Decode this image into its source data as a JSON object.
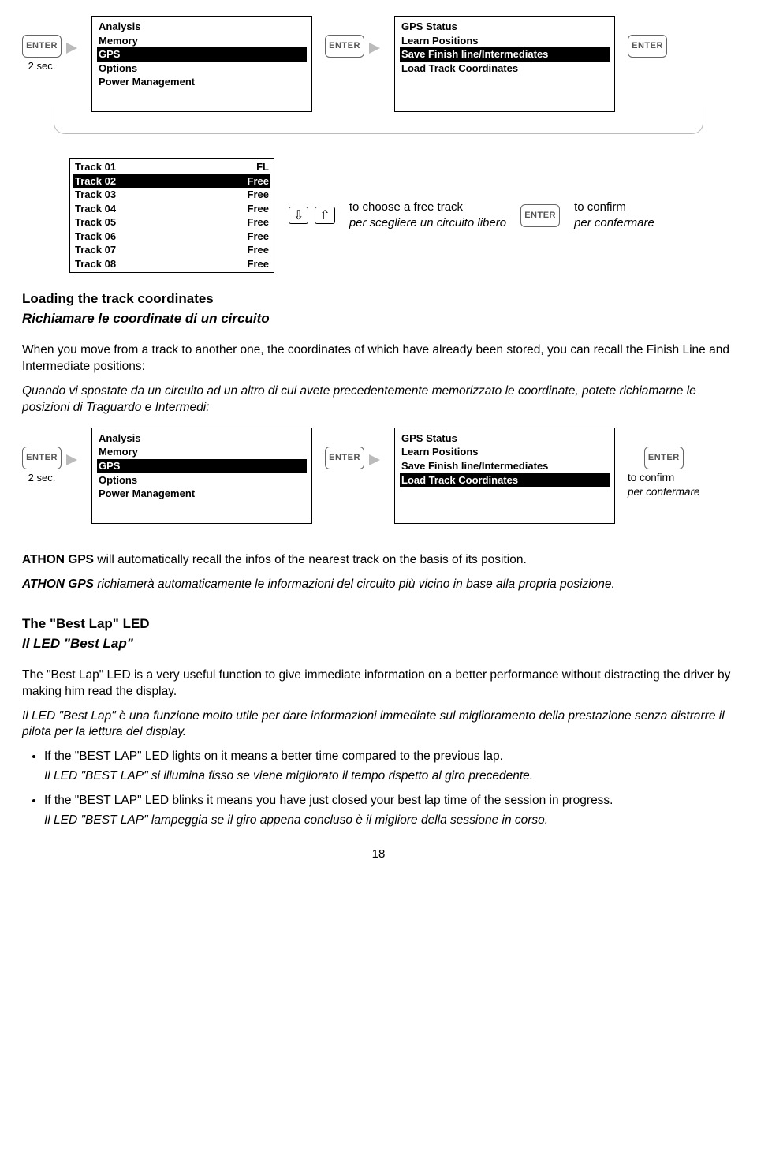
{
  "enter_label": "ENTER",
  "two_sec": "2 sec.",
  "menu1": {
    "items": [
      {
        "label": "Analysis",
        "sel": false
      },
      {
        "label": "Memory",
        "sel": false
      },
      {
        "label": "GPS",
        "sel": true
      },
      {
        "label": "Options",
        "sel": false
      },
      {
        "label": "Power Management",
        "sel": false
      }
    ]
  },
  "menu2": {
    "items": [
      {
        "label": "GPS Status",
        "sel": false
      },
      {
        "label": "Learn Positions",
        "sel": false
      },
      {
        "label": "Save Finish line/Intermediates",
        "sel": true
      },
      {
        "label": "Load Track Coordinates",
        "sel": false
      }
    ]
  },
  "tracks": {
    "rows": [
      {
        "name": "Track 01",
        "status": "FL",
        "sel": false
      },
      {
        "name": "Track 02",
        "status": "Free",
        "sel": true
      },
      {
        "name": "Track 03",
        "status": "Free",
        "sel": false
      },
      {
        "name": "Track 04",
        "status": "Free",
        "sel": false
      },
      {
        "name": "Track 05",
        "status": "Free",
        "sel": false
      },
      {
        "name": "Track 06",
        "status": "Free",
        "sel": false
      },
      {
        "name": "Track 07",
        "status": "Free",
        "sel": false
      },
      {
        "name": "Track 08",
        "status": "Free",
        "sel": false
      }
    ],
    "arrow_down": "⇩",
    "arrow_up": "⇧",
    "note_en": "to choose a free track",
    "note_it": "per scegliere un circuito libero",
    "confirm_en": "to confirm",
    "confirm_it": "per confermare"
  },
  "heading1_en": "Loading the track coordinates",
  "heading1_it": "Richiamare le coordinate di un circuito",
  "para1_en": "When you move from a track to another one, the coordinates of which have already been stored, you can recall the Finish Line and Intermediate positions:",
  "para1_it": "Quando vi spostate da un circuito ad un altro di cui avete precedentemente memorizzato le coordinate, potete richiamarne le posizioni di Traguardo e Intermedi:",
  "menu3": {
    "items": [
      {
        "label": "GPS Status",
        "sel": false
      },
      {
        "label": "Learn Positions",
        "sel": false
      },
      {
        "label": "Save Finish line/Intermediates",
        "sel": false
      },
      {
        "label": "Load Track Coordinates",
        "sel": true
      }
    ]
  },
  "confirm2_en": "to confirm",
  "confirm2_it": "per confermare",
  "para2_en_prefix": "ATHON GPS",
  "para2_en": " will automatically recall the infos of the nearest track on the basis of its position.",
  "para2_it_prefix": "ATHON GPS",
  "para2_it": " richiamerà automaticamente le informazioni del circuito più vicino in base alla propria posizione.",
  "heading2_en": "The \"Best Lap\" LED",
  "heading2_it": "Il LED \"Best Lap\"",
  "para3_en": "The \"Best Lap\" LED is a very useful function to give immediate information on a better performance without distracting the driver by making him read the display.",
  "para3_it": "Il LED \"Best Lap\" è una funzione molto utile per dare informazioni immediate sul miglioramento della prestazione senza distrarre il pilota per la lettura del display.",
  "bullets": [
    {
      "en": "If the \"BEST LAP\" LED lights on it means a better time compared to the previous lap.",
      "it": "Il LED \"BEST LAP\" si illumina fisso se viene migliorato il tempo rispetto al giro precedente."
    },
    {
      "en": "If the \"BEST LAP\" LED blinks it means you have just closed your best lap time of the session in progress.",
      "it": "Il LED \"BEST LAP\" lampeggia se il giro appena concluso è il migliore della sessione in corso."
    }
  ],
  "page_number": "18"
}
